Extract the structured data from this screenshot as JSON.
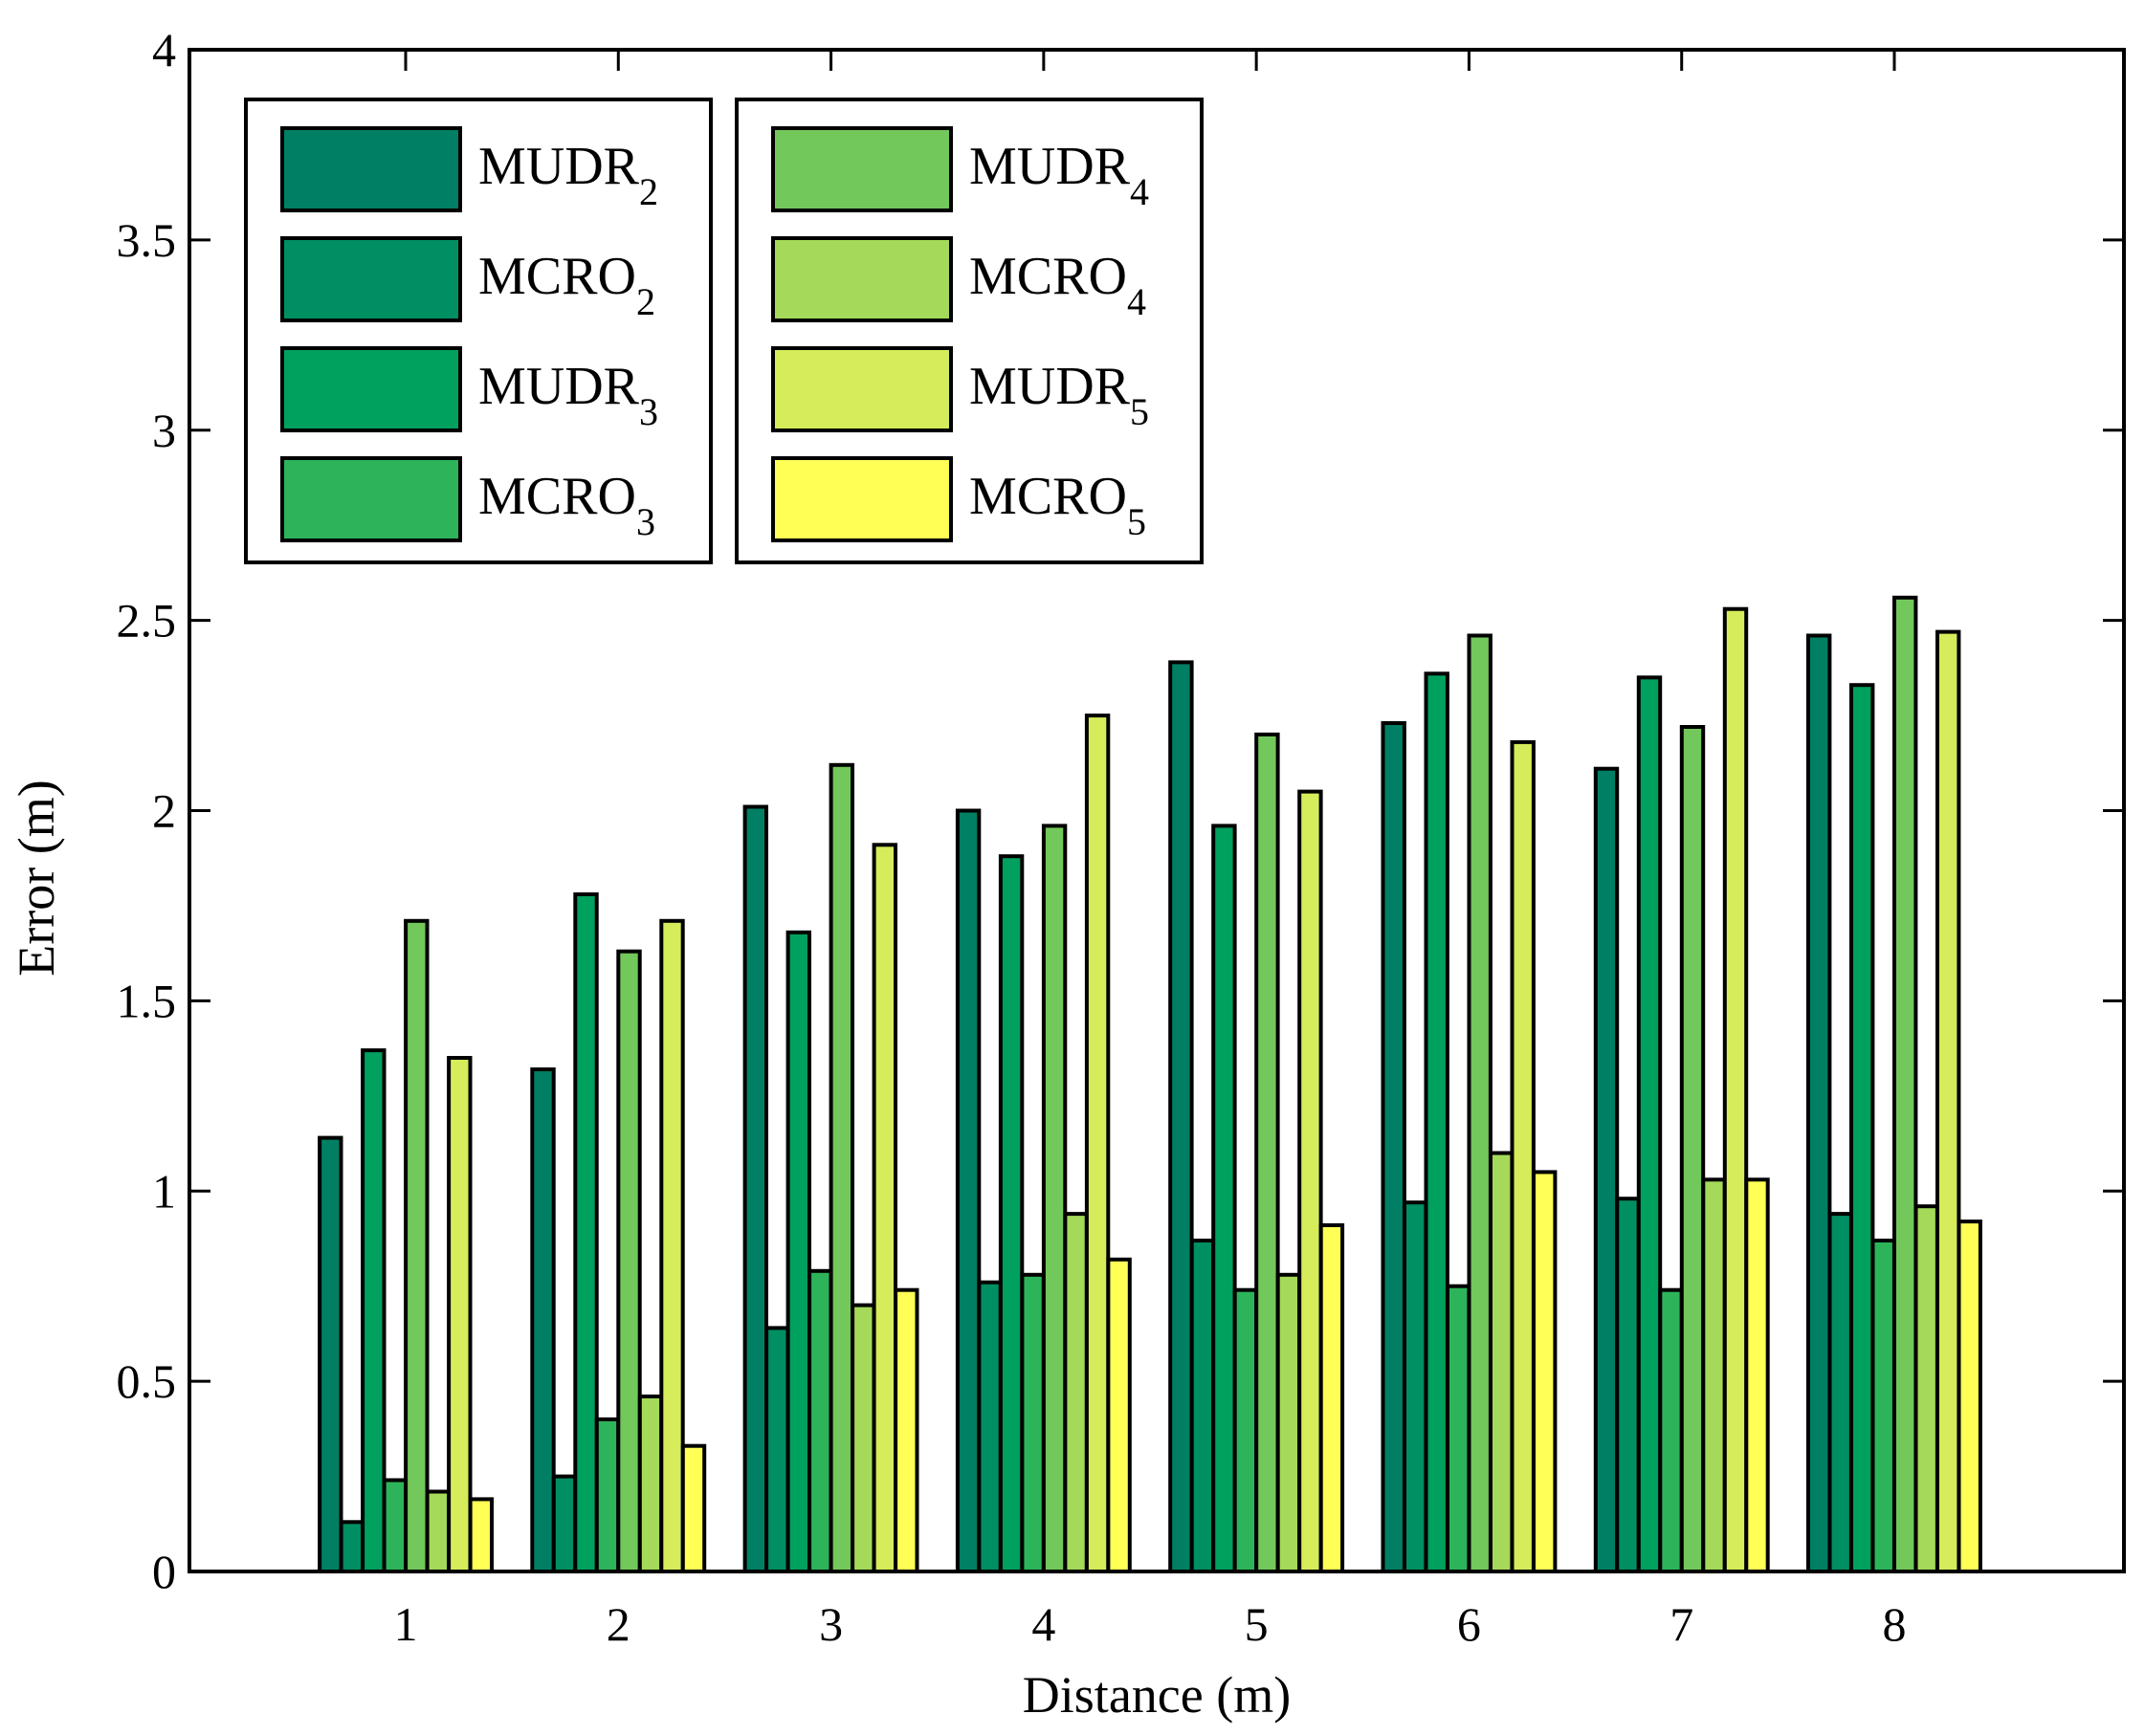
{
  "chart_data": {
    "type": "bar",
    "title": "",
    "xlabel": "Distance (m)",
    "ylabel": "Error (m)",
    "categories": [
      "1",
      "2",
      "3",
      "4",
      "5",
      "6",
      "7",
      "8"
    ],
    "ylim": [
      0,
      4
    ],
    "yticks": [
      "0",
      "0.5",
      "1",
      "1.5",
      "2",
      "2.5",
      "3",
      "3.5",
      "4"
    ],
    "grid": false,
    "legend_position": "top-left",
    "series": [
      {
        "name": "MUDR",
        "subscript": "2",
        "color": "#007F64",
        "values": [
          1.14,
          1.32,
          2.01,
          2.0,
          2.39,
          2.23,
          2.11,
          2.46
        ]
      },
      {
        "name": "MCRO",
        "subscript": "2",
        "color": "#008E63",
        "values": [
          0.13,
          0.25,
          0.64,
          0.76,
          0.87,
          0.97,
          0.98,
          0.94
        ]
      },
      {
        "name": "MUDR",
        "subscript": "3",
        "color": "#00A05E",
        "values": [
          1.37,
          1.78,
          1.68,
          1.88,
          1.96,
          2.36,
          2.35,
          2.33
        ]
      },
      {
        "name": "MCRO",
        "subscript": "3",
        "color": "#2DB45A",
        "values": [
          0.24,
          0.4,
          0.79,
          0.78,
          0.74,
          0.75,
          0.74,
          0.87
        ]
      },
      {
        "name": "MUDR",
        "subscript": "4",
        "color": "#72C85A",
        "values": [
          1.71,
          1.63,
          2.12,
          1.96,
          2.2,
          2.46,
          2.22,
          2.56
        ]
      },
      {
        "name": "MCRO",
        "subscript": "4",
        "color": "#A5D95A",
        "values": [
          0.21,
          0.46,
          0.7,
          0.94,
          0.78,
          1.1,
          1.03,
          0.96
        ]
      },
      {
        "name": "MUDR",
        "subscript": "5",
        "color": "#D6EC5A",
        "values": [
          1.35,
          1.71,
          1.91,
          2.25,
          2.05,
          2.18,
          2.53,
          2.47
        ]
      },
      {
        "name": "MCRO",
        "subscript": "5",
        "color": "#FFFF55",
        "values": [
          0.19,
          0.33,
          0.74,
          0.82,
          0.91,
          1.05,
          1.03,
          0.92
        ]
      }
    ]
  }
}
